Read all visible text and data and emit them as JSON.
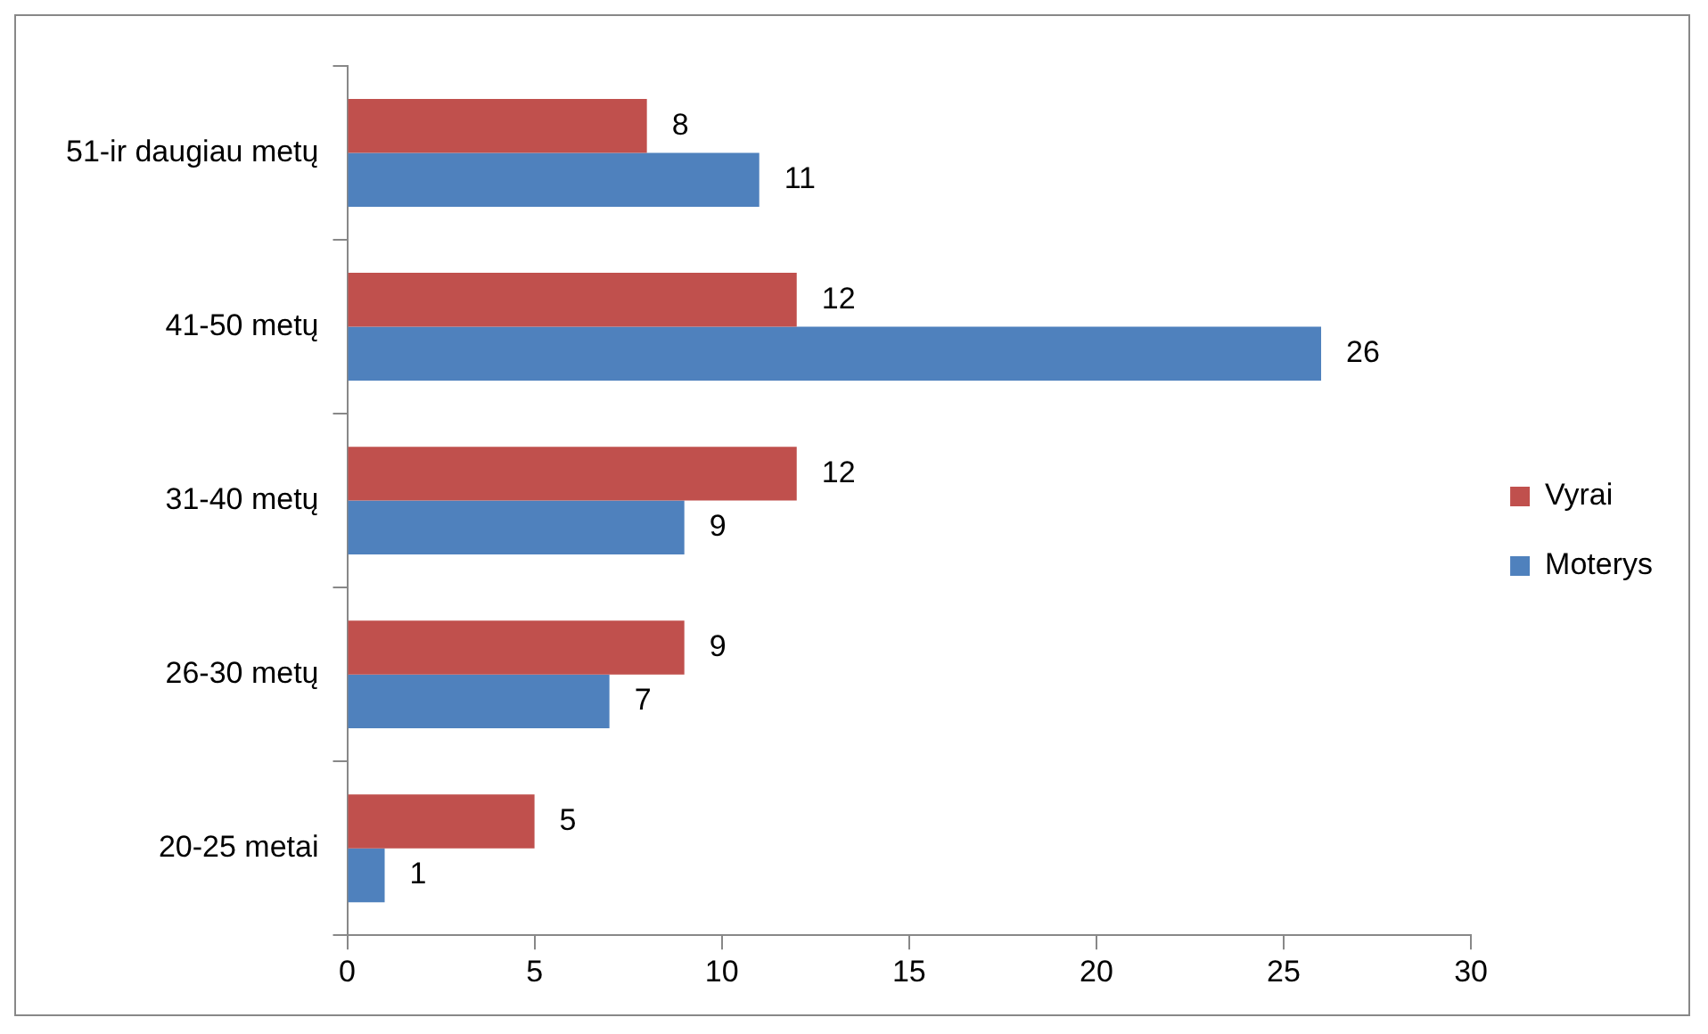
{
  "chart_data": {
    "type": "bar",
    "orientation": "horizontal",
    "categories": [
      "51-ir daugiau metų",
      "41-50 metų",
      "31-40 metų",
      "26-30 metų",
      "20-25 metai"
    ],
    "series": [
      {
        "name": "Vyrai",
        "color": "#c0504d",
        "values": [
          8,
          12,
          12,
          9,
          5
        ]
      },
      {
        "name": "Moterys",
        "color": "#4f81bd",
        "values": [
          11,
          26,
          9,
          7,
          1
        ]
      }
    ],
    "xlim": [
      0,
      30
    ],
    "xticks": [
      0,
      5,
      10,
      15,
      20,
      25,
      30
    ],
    "data_labels": true,
    "legend": "right"
  }
}
